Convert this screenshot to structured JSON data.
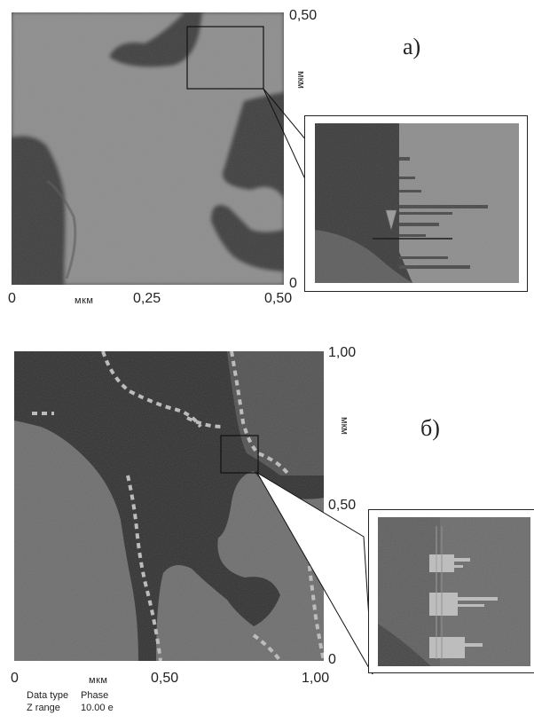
{
  "figure_a": {
    "label": "а)",
    "x_unit": "мкм",
    "y_unit": "мкм",
    "x_ticks": [
      "0",
      "0,25",
      "0,50"
    ],
    "y_ticks": [
      "0,50",
      "0"
    ]
  },
  "figure_b": {
    "label": "б)",
    "x_unit": "мкм",
    "y_unit": "мкм",
    "x_ticks": [
      "0",
      "0,50",
      "1,00"
    ],
    "y_ticks": [
      "1,00",
      "0,50",
      "0"
    ],
    "meta": {
      "data_type_label": "Data type",
      "data_type_value": "Phase",
      "z_range_label": "Z range",
      "z_range_value": "10.00 е"
    }
  },
  "colors": {
    "light_region": "#8a8a8a",
    "dark_region": "#3a3a3a",
    "phase_dark": "#2f2f2f",
    "phase_light": "#6e6e6e",
    "boundary_highlight": "#bdbdbd"
  }
}
